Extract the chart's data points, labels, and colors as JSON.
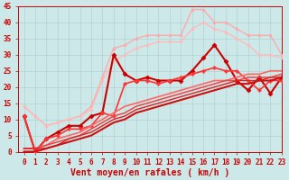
{
  "xlabel": "Vent moyen/en rafales ( km/h )",
  "xlim": [
    -0.5,
    23
  ],
  "ylim": [
    0,
    45
  ],
  "yticks": [
    0,
    5,
    10,
    15,
    20,
    25,
    30,
    35,
    40,
    45
  ],
  "xticks": [
    0,
    1,
    2,
    3,
    4,
    5,
    6,
    7,
    8,
    9,
    10,
    11,
    12,
    13,
    14,
    15,
    16,
    17,
    18,
    19,
    20,
    21,
    22,
    23
  ],
  "background_color": "#cce8e8",
  "grid_color": "#aacccc",
  "lines": [
    {
      "x": [
        0,
        1,
        2,
        3,
        4,
        5,
        6,
        7,
        8,
        9,
        10,
        11,
        12,
        13,
        14,
        15,
        16,
        17,
        18,
        19,
        20,
        21,
        22,
        23
      ],
      "y": [
        14,
        11,
        8,
        9,
        10,
        11,
        14,
        23,
        32,
        33,
        35,
        36,
        36,
        36,
        36,
        44,
        44,
        40,
        40,
        38,
        36,
        36,
        36,
        30
      ],
      "color": "#ffaaaa",
      "lw": 1.0,
      "marker": "o",
      "ms": 2.0
    },
    {
      "x": [
        0,
        1,
        2,
        3,
        4,
        5,
        6,
        7,
        8,
        9,
        10,
        11,
        12,
        13,
        14,
        15,
        16,
        17,
        18,
        19,
        20,
        21,
        22,
        23
      ],
      "y": [
        14,
        11,
        8,
        9,
        10,
        11,
        13,
        22,
        28,
        30,
        32,
        33,
        34,
        34,
        34,
        38,
        40,
        38,
        37,
        35,
        33,
        30,
        30,
        29
      ],
      "color": "#ffbbbb",
      "lw": 1.0,
      "marker": "o",
      "ms": 2.0
    },
    {
      "x": [
        0,
        1,
        2,
        3,
        4,
        5,
        6,
        7,
        8,
        9,
        10,
        11,
        12,
        13,
        14,
        15,
        16,
        17,
        18,
        19,
        20,
        21,
        22,
        23
      ],
      "y": [
        11,
        0,
        4,
        6,
        8,
        8,
        11,
        12,
        30,
        24,
        22,
        23,
        22,
        22,
        22,
        25,
        29,
        33,
        28,
        22,
        19,
        23,
        18,
        23
      ],
      "color": "#cc0000",
      "lw": 1.5,
      "marker": "D",
      "ms": 2.5
    },
    {
      "x": [
        0,
        1,
        2,
        3,
        4,
        5,
        6,
        7,
        8,
        9,
        10,
        11,
        12,
        13,
        14,
        15,
        16,
        17,
        18,
        19,
        20,
        21,
        22,
        23
      ],
      "y": [
        11,
        0,
        4,
        5,
        7,
        7,
        8,
        12,
        11,
        21,
        22,
        22,
        21,
        22,
        23,
        24,
        25,
        26,
        25,
        25,
        22,
        19,
        22,
        22
      ],
      "color": "#ff3333",
      "lw": 1.2,
      "marker": "P",
      "ms": 2.5
    },
    {
      "x": [
        0,
        1,
        2,
        3,
        4,
        5,
        6,
        7,
        8,
        9,
        10,
        11,
        12,
        13,
        14,
        15,
        16,
        17,
        18,
        19,
        20,
        21,
        22,
        23
      ],
      "y": [
        1,
        1,
        2,
        4,
        5,
        6,
        8,
        10,
        12,
        14,
        15,
        16,
        17,
        18,
        19,
        20,
        21,
        22,
        22,
        23,
        24,
        24,
        25,
        25
      ],
      "color": "#ff6666",
      "lw": 1.2,
      "marker": null,
      "ms": 0
    },
    {
      "x": [
        0,
        1,
        2,
        3,
        4,
        5,
        6,
        7,
        8,
        9,
        10,
        11,
        12,
        13,
        14,
        15,
        16,
        17,
        18,
        19,
        20,
        21,
        22,
        23
      ],
      "y": [
        1,
        1,
        2,
        3,
        4,
        5,
        7,
        9,
        11,
        12,
        14,
        15,
        16,
        17,
        18,
        19,
        20,
        21,
        22,
        22,
        23,
        23,
        23,
        24
      ],
      "color": "#ee4444",
      "lw": 1.1,
      "marker": null,
      "ms": 0
    },
    {
      "x": [
        0,
        1,
        2,
        3,
        4,
        5,
        6,
        7,
        8,
        9,
        10,
        11,
        12,
        13,
        14,
        15,
        16,
        17,
        18,
        19,
        20,
        21,
        22,
        23
      ],
      "y": [
        1,
        1,
        1,
        2,
        4,
        5,
        6,
        8,
        10,
        11,
        13,
        14,
        15,
        16,
        17,
        18,
        19,
        20,
        21,
        22,
        22,
        22,
        23,
        23
      ],
      "color": "#dd2222",
      "lw": 1.0,
      "marker": null,
      "ms": 0
    },
    {
      "x": [
        0,
        1,
        2,
        3,
        4,
        5,
        6,
        7,
        8,
        9,
        10,
        11,
        12,
        13,
        14,
        15,
        16,
        17,
        18,
        19,
        20,
        21,
        22,
        23
      ],
      "y": [
        0,
        0,
        1,
        2,
        3,
        4,
        5,
        7,
        9,
        10,
        12,
        13,
        14,
        15,
        16,
        17,
        18,
        19,
        20,
        21,
        21,
        22,
        22,
        23
      ],
      "color": "#cc1111",
      "lw": 1.5,
      "marker": null,
      "ms": 0
    }
  ],
  "tick_color": "#cc0000",
  "label_color": "#cc0000",
  "tick_fontsize": 5.5,
  "label_fontsize": 7
}
